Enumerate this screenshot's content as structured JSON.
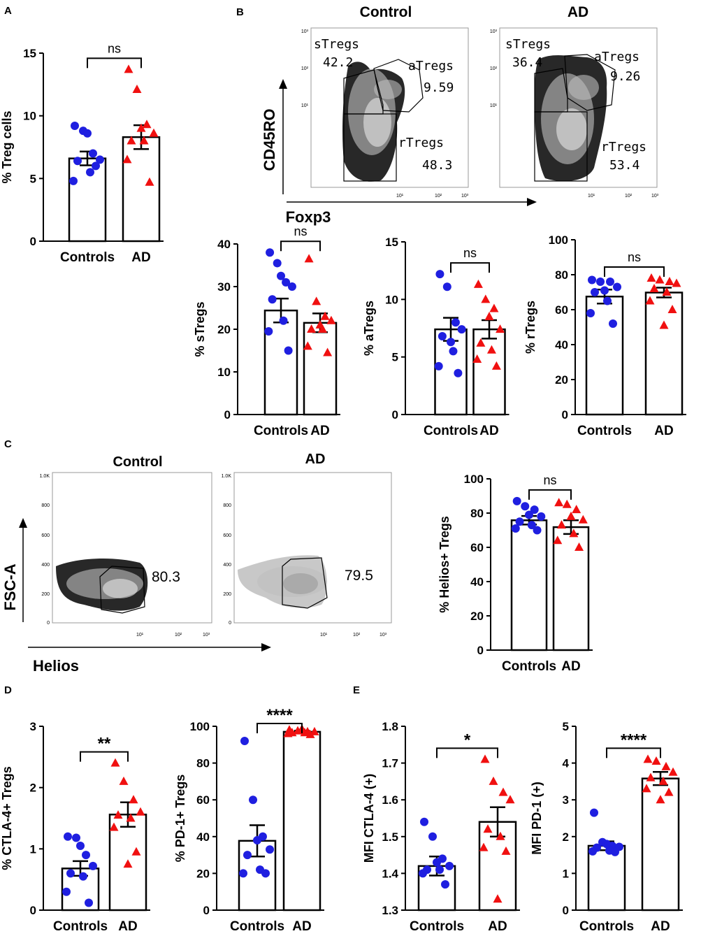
{
  "panel_letters": {
    "a": "A",
    "b": "B",
    "c": "C",
    "d": "D",
    "e": "E"
  },
  "flow": {
    "b_control_title": "Control",
    "b_ad_title": "AD",
    "b_yaxis": "CD45RO",
    "b_xaxis": "Foxp3",
    "b_control_gates": {
      "s_name": "sTregs",
      "s_val": "42.2",
      "a_name": "aTregs",
      "a_val": "9.59",
      "r_name": "rTregs",
      "r_val": "48.3"
    },
    "b_ad_gates": {
      "s_name": "sTregs",
      "s_val": "36.4",
      "a_name": "aTregs",
      "a_val": "9.26",
      "r_name": "rTregs",
      "r_val": "53.4"
    },
    "decade_ticks": [
      "10¹",
      "10²",
      "10³"
    ],
    "c_control_title": "Control",
    "c_ad_title": "AD",
    "c_yaxis": "FSC-A",
    "c_xaxis": "Helios",
    "c_control_val": "80.3",
    "c_ad_val": "79.5",
    "fsc_ticks": [
      "1.0K",
      "800",
      "600",
      "400",
      "200",
      "0"
    ]
  },
  "colors": {
    "controls": "#1f1fe0",
    "ad": "#f01010"
  },
  "chart_data": [
    {
      "id": "A_treg",
      "type": "bar",
      "categories": [
        "Controls",
        "AD"
      ],
      "ylabel": "% Treg cells",
      "ylim": [
        0,
        15
      ],
      "yticks": [
        0,
        5,
        10,
        15
      ],
      "means": [
        6.6,
        8.3
      ],
      "sem": [
        0.55,
        0.95
      ],
      "sig": "ns",
      "points": [
        [
          9.2,
          8.8,
          7.0,
          6.5,
          6.4,
          5.5,
          4.8,
          6.0,
          8.6
        ],
        [
          13.7,
          12.1,
          9.3,
          8.6,
          8.0,
          8.0,
          6.5,
          4.7,
          9.0
        ]
      ]
    },
    {
      "id": "B_sTregs",
      "type": "bar",
      "categories": [
        "Controls",
        "AD"
      ],
      "ylabel": "% sTregs",
      "ylim": [
        0,
        40
      ],
      "yticks": [
        0,
        10,
        20,
        30,
        40
      ],
      "means": [
        24.4,
        21.5
      ],
      "sem": [
        2.8,
        2.2
      ],
      "sig": "ns",
      "points": [
        [
          38,
          35.5,
          31,
          30,
          27,
          22,
          19.5,
          15,
          32.5
        ],
        [
          36.5,
          26.5,
          23,
          22,
          20,
          20,
          16,
          14.5,
          21
        ]
      ]
    },
    {
      "id": "B_aTregs",
      "type": "bar",
      "categories": [
        "Controls",
        "AD"
      ],
      "ylabel": "% aTregs",
      "ylim": [
        0,
        15
      ],
      "yticks": [
        0,
        5,
        10,
        15
      ],
      "means": [
        7.4,
        7.4
      ],
      "sem": [
        1.0,
        0.8
      ],
      "sig": "ns",
      "points": [
        [
          12.2,
          11.1,
          8.0,
          7.4,
          6.8,
          5.5,
          4.2,
          3.6,
          6.3
        ],
        [
          11.3,
          10.0,
          9.2,
          7.4,
          6.2,
          5.6,
          4.8,
          4.2,
          8.5
        ]
      ]
    },
    {
      "id": "B_rTregs",
      "type": "bar",
      "categories": [
        "Controls",
        "AD"
      ],
      "ylabel": "% rTregs",
      "ylim": [
        0,
        100
      ],
      "yticks": [
        0,
        20,
        40,
        60,
        80,
        100
      ],
      "means": [
        67.5,
        69.8
      ],
      "sem": [
        4.0,
        2.8
      ],
      "sig": "ns",
      "points": [
        [
          77,
          76,
          76,
          73,
          70,
          65,
          58,
          52,
          71
        ],
        [
          78,
          77,
          76,
          75,
          72,
          70,
          65,
          60,
          51
        ]
      ]
    },
    {
      "id": "C_helios",
      "type": "bar",
      "categories": [
        "Controls",
        "AD"
      ],
      "ylabel": "% Helios+ Tregs",
      "ylim": [
        0,
        100
      ],
      "yticks": [
        0,
        20,
        40,
        60,
        80,
        100
      ],
      "means": [
        75.8,
        71.8
      ],
      "sem": [
        2.5,
        4.0
      ],
      "sig": "ns",
      "points": [
        [
          87,
          84,
          82,
          78,
          75,
          73,
          71,
          70,
          79
        ],
        [
          86,
          85,
          82,
          76,
          73,
          68,
          64,
          60,
          78
        ]
      ]
    },
    {
      "id": "D_ctla4",
      "type": "bar",
      "categories": [
        "Controls",
        "AD"
      ],
      "ylabel": "% CTLA-4+ Tregs",
      "ylim": [
        0,
        3
      ],
      "yticks": [
        0,
        1,
        2,
        3
      ],
      "means": [
        0.68,
        1.56
      ],
      "sem": [
        0.12,
        0.2
      ],
      "sig": "**",
      "points": [
        [
          1.2,
          1.18,
          0.9,
          0.72,
          0.6,
          0.55,
          0.3,
          0.12,
          1.05
        ],
        [
          2.4,
          2.1,
          1.8,
          1.6,
          1.55,
          1.5,
          1.35,
          0.95,
          0.75
        ]
      ]
    },
    {
      "id": "D_pd1",
      "type": "bar",
      "categories": [
        "Controls",
        "AD"
      ],
      "ylabel": "% PD-1+ Tregs",
      "ylim": [
        0,
        100
      ],
      "yticks": [
        0,
        20,
        40,
        60,
        80,
        100
      ],
      "means": [
        37.7,
        97.0
      ],
      "sem": [
        8.5,
        0.6
      ],
      "sig": "****",
      "points": [
        [
          92,
          60,
          40,
          33,
          30,
          22,
          20,
          20,
          38
        ],
        [
          98,
          97.5,
          97,
          97,
          96.5,
          96.5,
          96,
          95.5,
          98.5
        ]
      ]
    },
    {
      "id": "E_ctla4_mfi",
      "type": "bar",
      "categories": [
        "Controls",
        "AD"
      ],
      "ylabel": "MFI CTLA-4 (+)",
      "ylim": [
        1.3,
        1.8
      ],
      "yticks": [
        1.3,
        1.4,
        1.5,
        1.6,
        1.7,
        1.8
      ],
      "decimals": 1,
      "means": [
        1.42,
        1.54
      ],
      "sem": [
        0.026,
        0.04
      ],
      "sig": "*",
      "points": [
        [
          1.54,
          1.5,
          1.44,
          1.42,
          1.41,
          1.41,
          1.4,
          1.37,
          1.43
        ],
        [
          1.71,
          1.65,
          1.62,
          1.6,
          1.52,
          1.5,
          1.47,
          1.46,
          1.33
        ]
      ]
    },
    {
      "id": "E_pd1_mfi",
      "type": "bar",
      "categories": [
        "Controls",
        "AD"
      ],
      "ylabel": "MFI PD-1 (+)",
      "ylim": [
        0,
        5
      ],
      "yticks": [
        0,
        1,
        2,
        3,
        4,
        5
      ],
      "means": [
        1.75,
        3.58
      ],
      "sem": [
        0.12,
        0.18
      ],
      "sig": "****",
      "points": [
        [
          2.65,
          1.85,
          1.75,
          1.72,
          1.7,
          1.62,
          1.6,
          1.58,
          1.8
        ],
        [
          4.1,
          4.05,
          3.9,
          3.75,
          3.6,
          3.5,
          3.3,
          3.2,
          3.0
        ]
      ]
    }
  ]
}
